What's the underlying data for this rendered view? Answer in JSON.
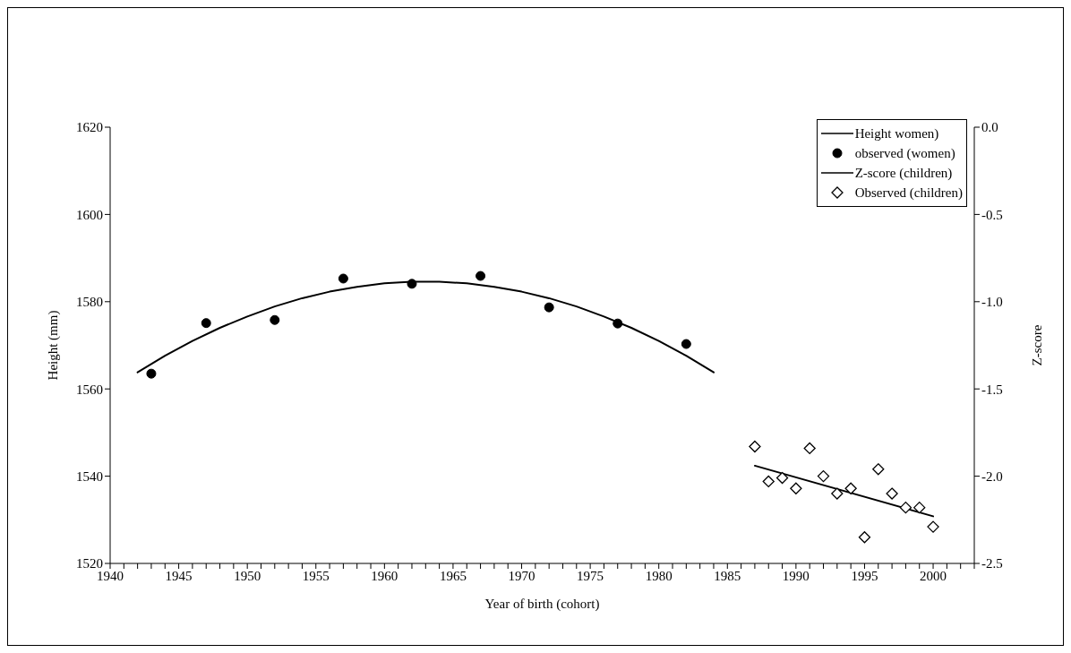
{
  "chart_data": {
    "type": "line",
    "xlabel": "Year of birth (cohort)",
    "ylabel": "Height (mm)",
    "y2label": "Z-score",
    "xlim": [
      1940,
      2003
    ],
    "xticks": [
      1940,
      {
        "value": 1941,
        "label": null
      },
      {
        "value": 1942,
        "label": null
      },
      {
        "value": 1943,
        "label": null
      },
      {
        "value": 1944,
        "label": null
      },
      1945,
      {
        "value": 1946,
        "label": null
      },
      {
        "value": 1947,
        "label": null
      },
      {
        "value": 1948,
        "label": null
      },
      {
        "value": 1949,
        "label": null
      },
      1950,
      {
        "value": 1951,
        "label": null
      },
      {
        "value": 1952,
        "label": null
      },
      {
        "value": 1953,
        "label": null
      },
      {
        "value": 1954,
        "label": null
      },
      1955,
      {
        "value": 1956,
        "label": null
      },
      {
        "value": 1957,
        "label": null
      },
      {
        "value": 1958,
        "label": null
      },
      {
        "value": 1959,
        "label": null
      },
      1960,
      {
        "value": 1961,
        "label": null
      },
      {
        "value": 1962,
        "label": null
      },
      {
        "value": 1963,
        "label": null
      },
      {
        "value": 1964,
        "label": null
      },
      1965,
      {
        "value": 1966,
        "label": null
      },
      {
        "value": 1967,
        "label": null
      },
      {
        "value": 1968,
        "label": null
      },
      {
        "value": 1969,
        "label": null
      },
      1970,
      {
        "value": 1971,
        "label": null
      },
      {
        "value": 1972,
        "label": null
      },
      {
        "value": 1973,
        "label": null
      },
      {
        "value": 1974,
        "label": null
      },
      1975,
      {
        "value": 1976,
        "label": null
      },
      {
        "value": 1977,
        "label": null
      },
      {
        "value": 1978,
        "label": null
      },
      {
        "value": 1979,
        "label": null
      },
      1980,
      {
        "value": 1981,
        "label": null
      },
      {
        "value": 1982,
        "label": null
      },
      {
        "value": 1983,
        "label": null
      },
      {
        "value": 1984,
        "label": null
      },
      1985,
      {
        "value": 1986,
        "label": null
      },
      {
        "value": 1987,
        "label": null
      },
      {
        "value": 1988,
        "label": null
      },
      {
        "value": 1989,
        "label": null
      },
      1990,
      {
        "value": 1991,
        "label": null
      },
      {
        "value": 1992,
        "label": null
      },
      {
        "value": 1993,
        "label": null
      },
      {
        "value": 1994,
        "label": null
      },
      1995,
      {
        "value": 1996,
        "label": null
      },
      {
        "value": 1997,
        "label": null
      },
      {
        "value": 1998,
        "label": null
      },
      {
        "value": 1999,
        "label": null
      },
      2000,
      {
        "value": 2001,
        "label": null
      },
      {
        "value": 2002,
        "label": null
      },
      {
        "value": 2003,
        "label": null
      }
    ],
    "ylim": [
      1520,
      1620
    ],
    "yticks": [
      1520,
      1540,
      1560,
      1580,
      1600,
      1620
    ],
    "y2lim": [
      -2.5,
      0
    ],
    "y2ticks": [
      {
        "value": -2.5,
        "label": "-2.5"
      },
      {
        "value": -2,
        "label": "-2.0"
      },
      {
        "value": -1.5,
        "label": "-1.5"
      },
      {
        "value": -1,
        "label": "-1.0"
      },
      {
        "value": -0.5,
        "label": "-0.5"
      },
      {
        "value": 0,
        "label": "0.0"
      }
    ],
    "grid": false,
    "legend": "top right",
    "line_style": "solid",
    "series": [
      {
        "name": "Height women)",
        "color": "#000000",
        "marker": "none",
        "x": [
          1942,
          1944,
          1946,
          1948,
          1950,
          1952,
          1954,
          1956,
          1958,
          1960,
          1962,
          1964,
          1966,
          1968,
          1970,
          1972,
          1974,
          1976,
          1978,
          1980,
          1982,
          1984
        ],
        "values": [
          1563.8,
          1567.6,
          1571.0,
          1574.0,
          1576.6,
          1578.9,
          1580.8,
          1582.3,
          1583.4,
          1584.2,
          1584.6,
          1584.6,
          1584.2,
          1583.4,
          1582.3,
          1580.8,
          1578.9,
          1576.6,
          1574.0,
          1571.0,
          1567.6,
          1563.8
        ]
      },
      {
        "name": "observed (women)",
        "type": "scatter",
        "color": "#000000",
        "marker": "circle",
        "x": [
          1943,
          1947,
          1952,
          1957,
          1962,
          1967,
          1972,
          1977,
          1982
        ],
        "values": [
          1563.5,
          1575.1,
          1575.8,
          1585.3,
          1584.1,
          1585.9,
          1578.7,
          1575.0,
          1570.3
        ]
      },
      {
        "name": "Z-score (children)",
        "color": "#000000",
        "marker": "none",
        "axis": "y2",
        "x": [
          1987,
          2000
        ],
        "values": [
          -1.94,
          -2.23
        ]
      },
      {
        "name": "Observed (children)",
        "type": "scatter",
        "color": "#000000",
        "marker": "diamond",
        "axis": "y2",
        "x": [
          1987,
          1988,
          1989,
          1990,
          1991,
          1992,
          1993,
          1994,
          1995,
          1996,
          1997,
          1998,
          1999,
          2000
        ],
        "values": [
          -1.83,
          -2.03,
          -2.01,
          -2.07,
          -1.84,
          -2.0,
          -2.1,
          -2.07,
          -2.35,
          -1.96,
          -2.1,
          -2.18,
          -2.18,
          -2.29
        ]
      }
    ]
  }
}
